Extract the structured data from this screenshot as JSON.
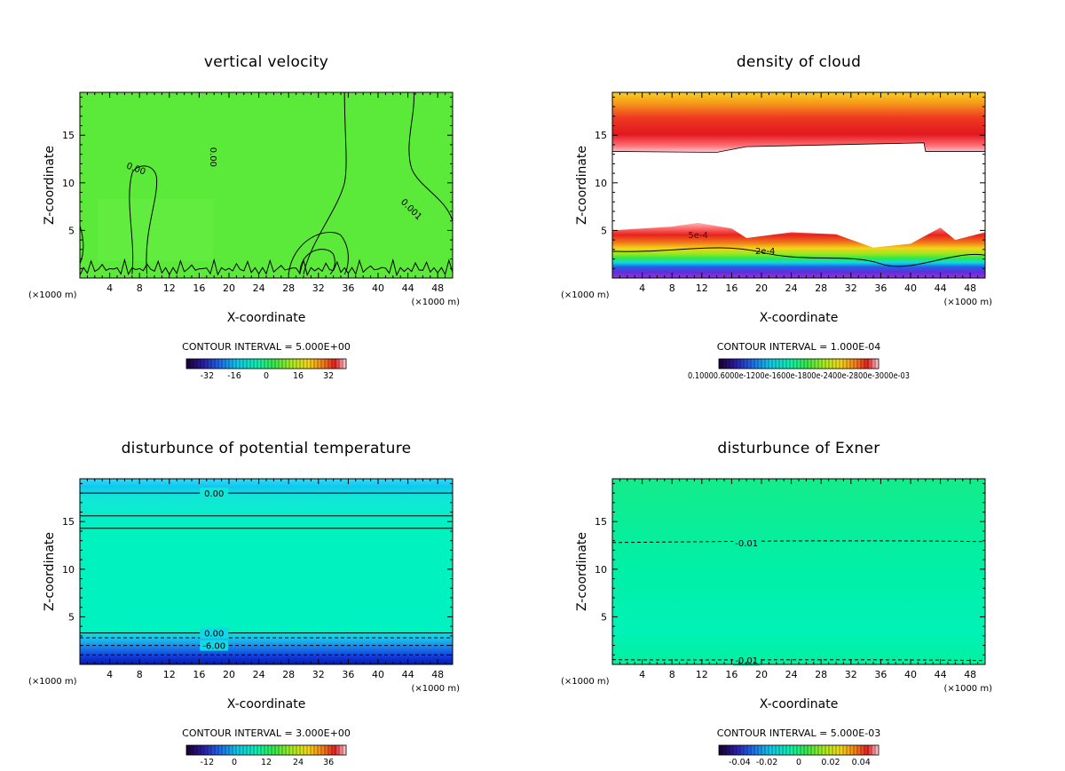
{
  "chart_data": [
    {
      "type": "heatmap",
      "title": "vertical velocity",
      "xlabel": "X-coordinate",
      "ylabel": "Z-coordinate",
      "x_unit": "(×1000 m)",
      "xlim": [
        0,
        50
      ],
      "ylim": [
        0,
        19.5
      ],
      "x_ticks": [
        4,
        8,
        12,
        16,
        20,
        24,
        28,
        32,
        36,
        40,
        44,
        48
      ],
      "y_ticks": [
        5,
        10,
        15
      ],
      "fill_color": "#5cea3a",
      "contour_interval": "CONTOUR INTERVAL = 5.000E+00",
      "colorbar_labels": [
        "-32",
        "-16",
        "0",
        "16",
        "32"
      ],
      "contour_labels": [
        "0.00",
        "0.00",
        "0.001"
      ]
    },
    {
      "type": "heatmap",
      "title": "density of cloud",
      "xlabel": "X-coordinate",
      "ylabel": "Z-coordinate",
      "x_unit": "(×1000 m)",
      "xlim": [
        0,
        50
      ],
      "ylim": [
        0,
        19.5
      ],
      "x_ticks": [
        4,
        8,
        12,
        16,
        20,
        24,
        28,
        32,
        36,
        40,
        44,
        48
      ],
      "y_ticks": [
        5,
        10,
        15
      ],
      "contour_interval": "CONTOUR INTERVAL = 1.000E-04",
      "colorbar_labels": [
        "0.10000",
        "8.60",
        "06e-",
        "1200",
        "e-16",
        "008",
        "-188",
        "00e-",
        "248",
        "00e-",
        "23000",
        "-300e-03"
      ],
      "colorbar_text": "0.10000.6000e-1200e-1600e-1800e-2400e-2800e-3000e-03",
      "contour_labels": [
        "2e-4",
        "5e-4"
      ]
    },
    {
      "type": "heatmap",
      "title": "disturbunce of potential temperature",
      "xlabel": "X-coordinate",
      "ylabel": "Z-coordinate",
      "x_unit": "(×1000 m)",
      "xlim": [
        0,
        50
      ],
      "ylim": [
        0,
        19.5
      ],
      "x_ticks": [
        4,
        8,
        12,
        16,
        20,
        24,
        28,
        32,
        36,
        40,
        44,
        48
      ],
      "y_ticks": [
        5,
        10,
        15
      ],
      "contour_interval": "CONTOUR INTERVAL = 3.000E+00",
      "colorbar_labels": [
        "-12",
        "0",
        "12",
        "24",
        "36"
      ],
      "contour_labels": [
        "0.00",
        "0.00",
        "-6.00"
      ]
    },
    {
      "type": "heatmap",
      "title": "disturbunce of Exner",
      "xlabel": "X-coordinate",
      "ylabel": "Z-coordinate",
      "x_unit": "(×1000 m)",
      "xlim": [
        0,
        50
      ],
      "ylim": [
        0,
        19.5
      ],
      "x_ticks": [
        4,
        8,
        12,
        16,
        20,
        24,
        28,
        32,
        36,
        40,
        44,
        48
      ],
      "y_ticks": [
        5,
        10,
        15
      ],
      "contour_interval": "CONTOUR INTERVAL = 5.000E-03",
      "colorbar_labels": [
        "-0.04",
        "-0.02",
        "0",
        "0.02",
        "0.04"
      ],
      "contour_labels": [
        "-0.01",
        "-0.01"
      ]
    }
  ]
}
